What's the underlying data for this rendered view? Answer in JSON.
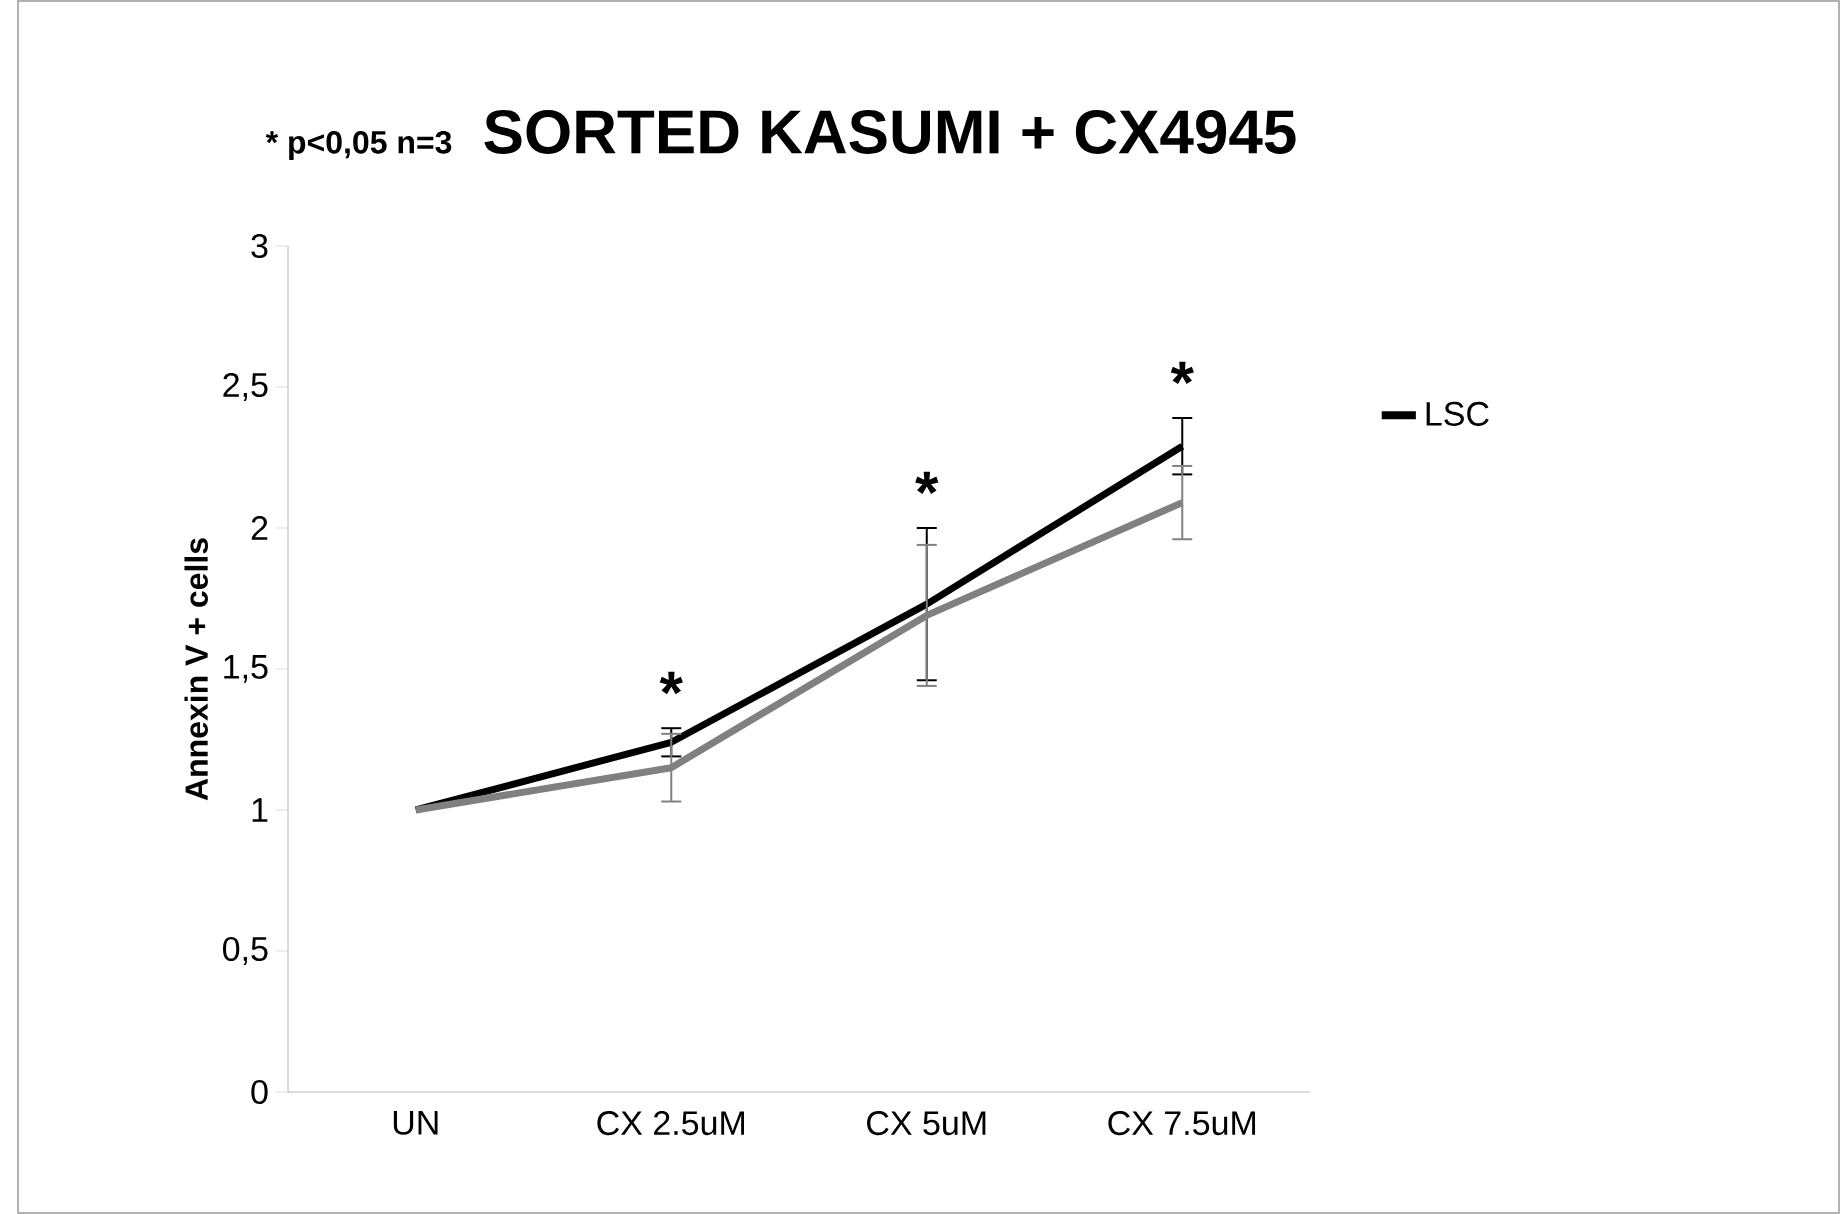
{
  "chart_data": {
    "type": "line",
    "title": "SORTED KASUMI + CX4945",
    "ylabel": "Annexin V + cells",
    "categories": [
      "UN",
      "CX 2.5uM",
      "CX 5uM",
      "CX 7.5uM"
    ],
    "series": [
      {
        "name": "LSC",
        "color": "#000000",
        "values": [
          1,
          1.24,
          1.73,
          2.29
        ],
        "errors": [
          null,
          0.05,
          0.27,
          0.1
        ]
      },
      {
        "color": "#808080",
        "values": [
          1,
          1.15,
          1.69,
          2.09
        ],
        "errors": [
          null,
          0.12,
          0.25,
          0.13
        ]
      }
    ],
    "ylim": [
      0,
      3
    ],
    "yticks": [
      0,
      {
        "value": 0.5,
        "label": "0,5"
      },
      1,
      {
        "value": 1.5,
        "label": "1,5"
      },
      2,
      {
        "value": 2.5,
        "label": "2,5"
      },
      3
    ],
    "annotations": [
      "* p<0,05 n=3",
      "*",
      "*",
      "*"
    ],
    "legend": "right",
    "grid": false,
    "marker": "none",
    "line_style": "solid"
  }
}
